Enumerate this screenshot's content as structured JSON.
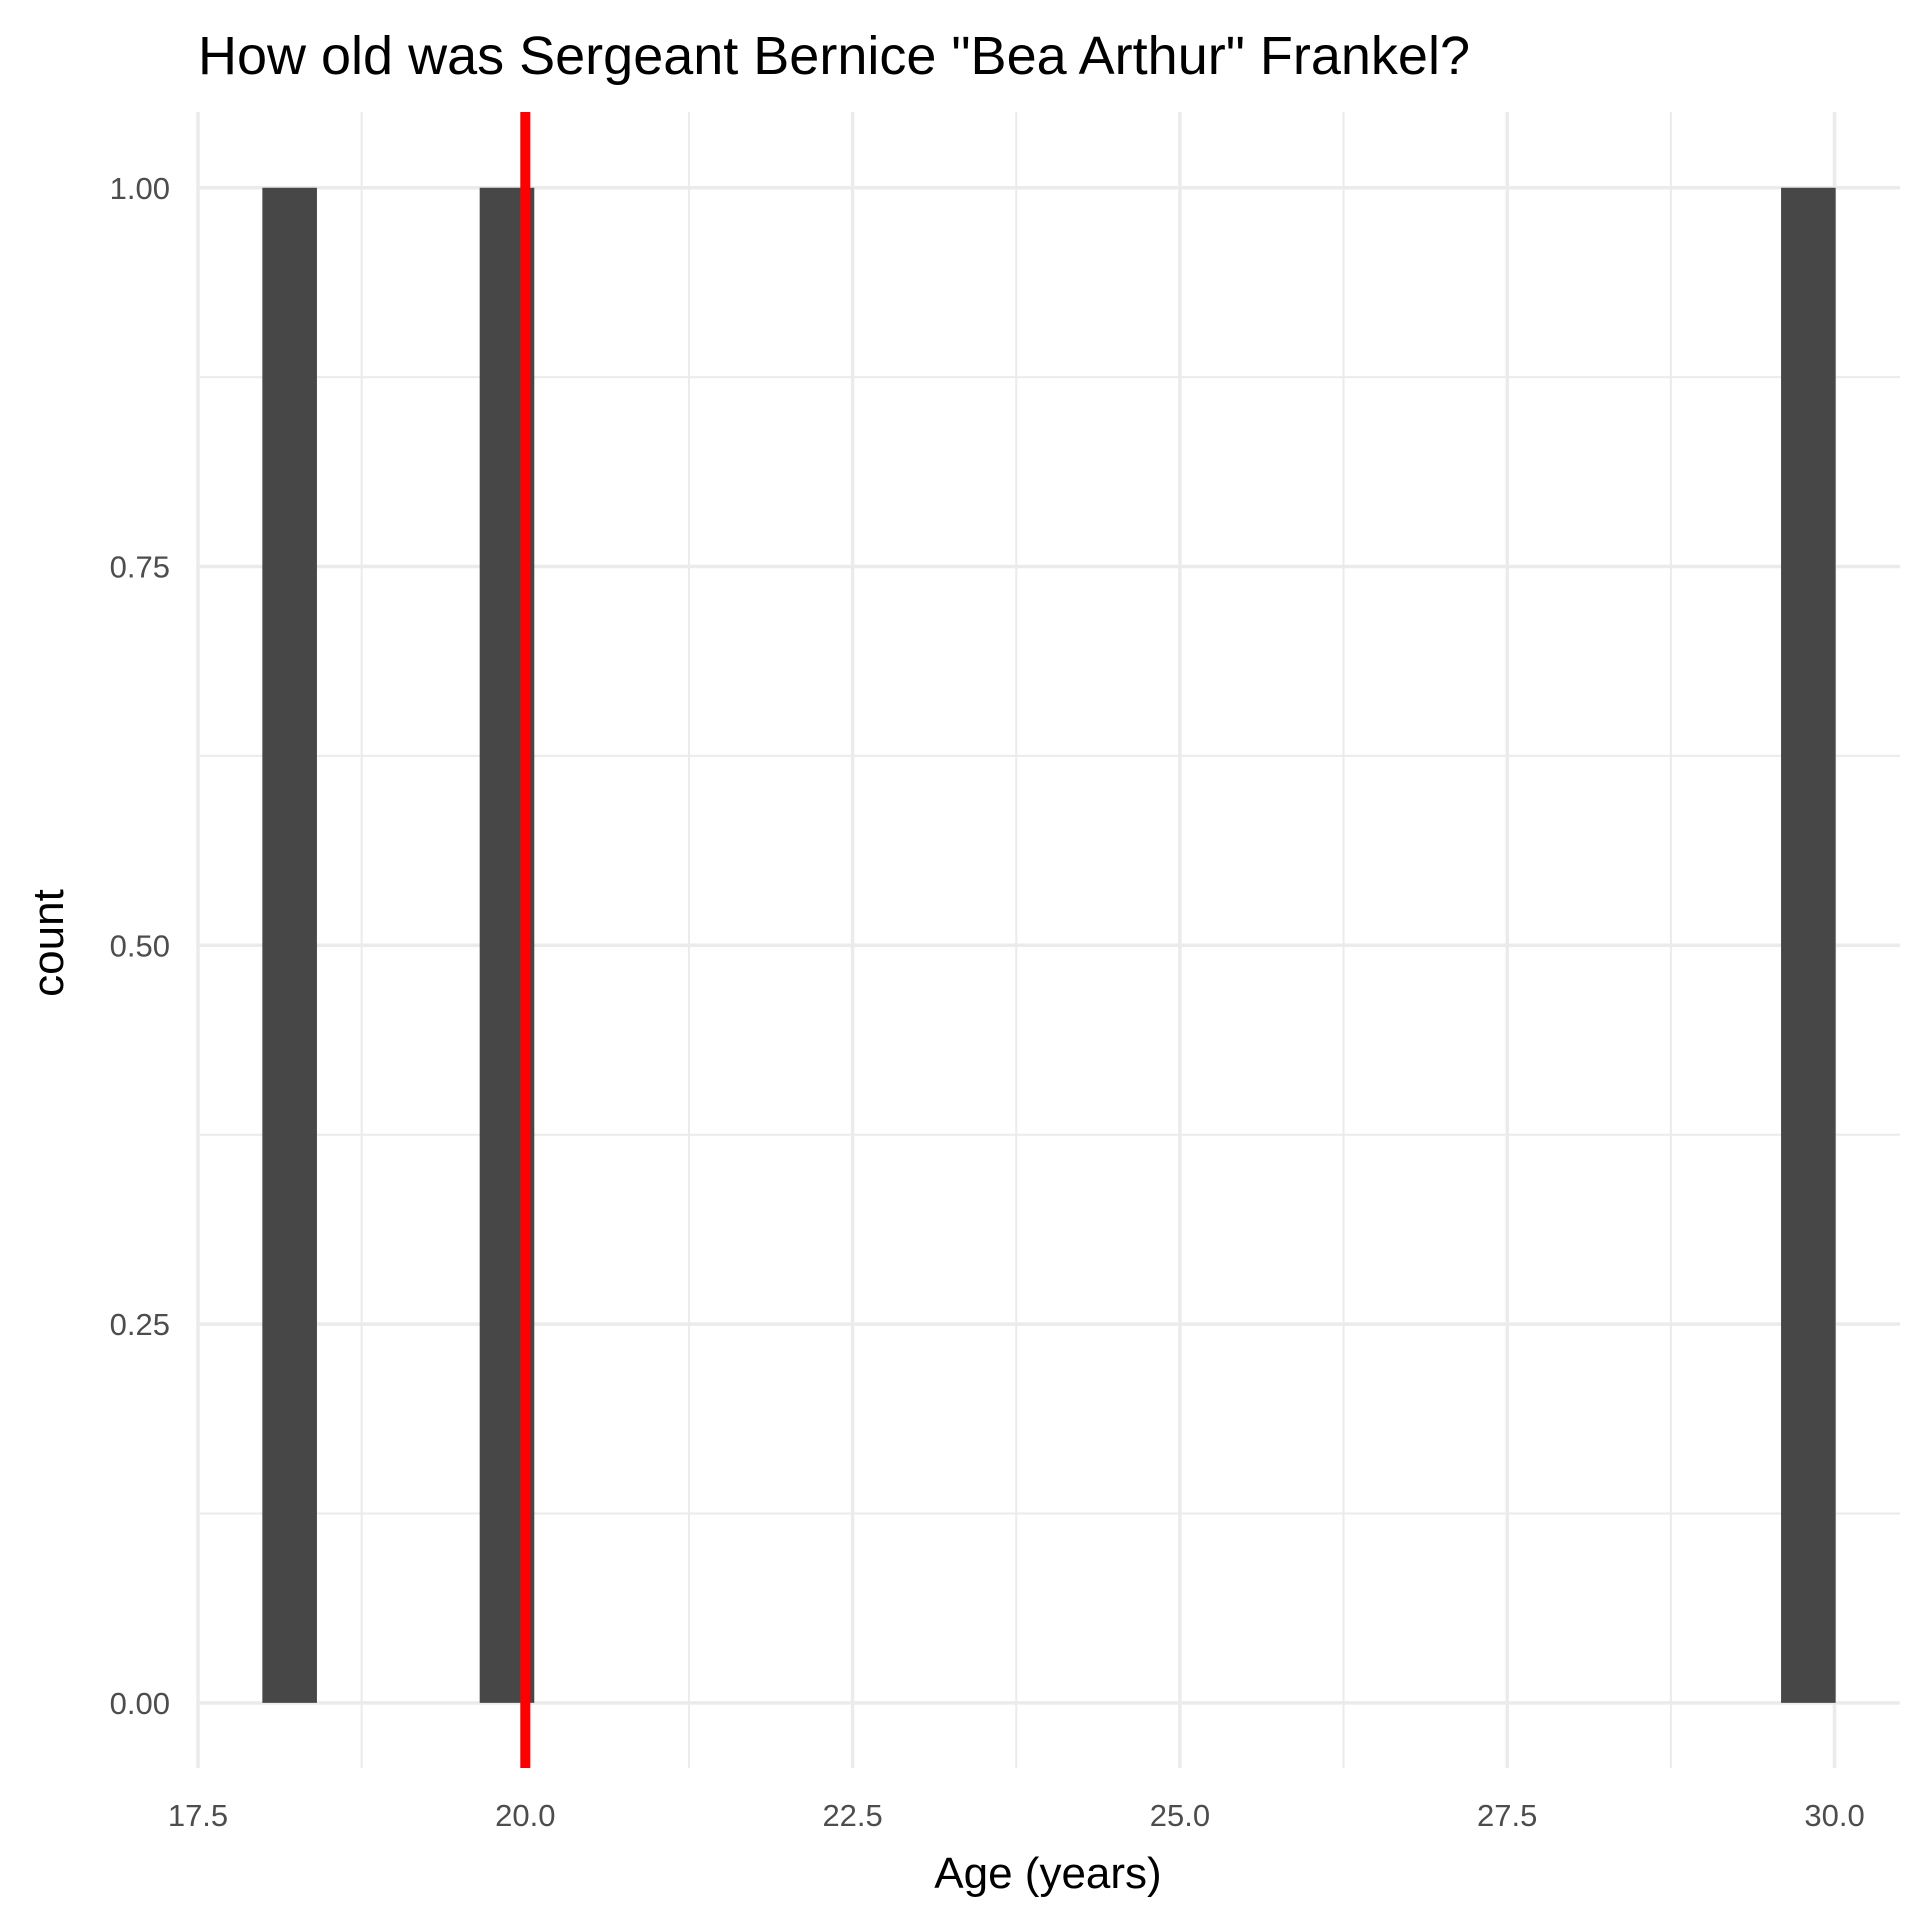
{
  "chart_data": {
    "type": "bar",
    "title": "How old was Sergeant Bernice \"Bea Arthur\" Frankel?",
    "xlabel": "Age (years)",
    "ylabel": "count",
    "xlim": [
      17.5,
      30.5
    ],
    "ylim": [
      -0.043,
      1.05
    ],
    "x_ticks": [
      17.5,
      20.0,
      22.5,
      25.0,
      27.5,
      30.0
    ],
    "x_tick_labels": [
      "17.5",
      "20.0",
      "22.5",
      "25.0",
      "27.5",
      "30.0"
    ],
    "y_ticks": [
      0,
      0.25,
      0.5,
      0.75,
      1.0
    ],
    "y_tick_labels": [
      "0.00",
      "0.25",
      "0.50",
      "0.75",
      "1.00"
    ],
    "bin_width": 0.417,
    "bars": [
      {
        "x": 18.2,
        "count": 1
      },
      {
        "x": 19.86,
        "count": 1
      },
      {
        "x": 29.8,
        "count": 1
      }
    ],
    "reference_line": {
      "x": 20,
      "color": "#ff0000"
    },
    "bar_color": "#474747",
    "grid": true,
    "legend": "none"
  }
}
